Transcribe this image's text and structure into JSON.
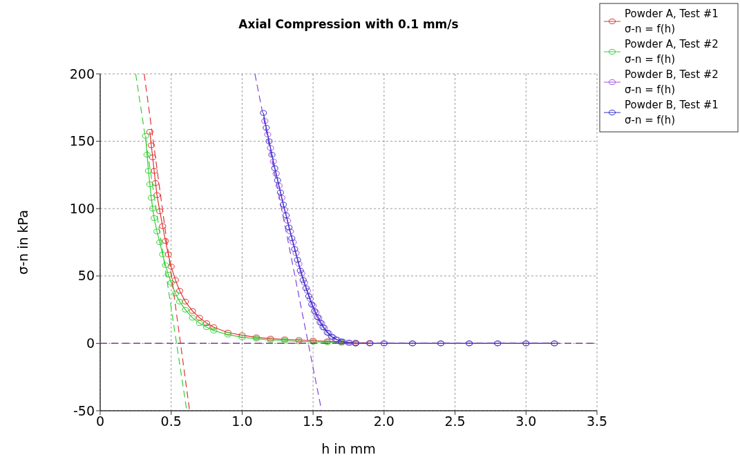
{
  "chart_data": {
    "type": "line",
    "title": "Axial Compression with 0.1 mm/s",
    "xlabel": "h in mm",
    "ylabel": "σ-n in kPa",
    "xlim": [
      0,
      3.5
    ],
    "xticks": [
      0,
      0.5,
      {
        "value": 1,
        "label": "1.0"
      },
      1.5,
      {
        "value": 2,
        "label": "2.0"
      },
      2.5,
      {
        "value": 3,
        "label": "3.0"
      },
      3.5
    ],
    "ylim": [
      -50,
      200
    ],
    "yticks": [
      -50,
      0,
      50,
      100,
      150,
      200
    ],
    "grid": true,
    "legend": "top right",
    "marker": "circle",
    "line_style": "solid",
    "series": [
      {
        "name": "Powder A, Test #1\nσ-n = f(h)",
        "color": "#e03030",
        "x": [
          0.35,
          0.36,
          0.37,
          0.38,
          0.39,
          0.4,
          0.42,
          0.44,
          0.46,
          0.48,
          0.5,
          0.53,
          0.56,
          0.6,
          0.65,
          0.7,
          0.75,
          0.8,
          0.9,
          1.0,
          1.1,
          1.2,
          1.3,
          1.4,
          1.5,
          1.6,
          1.7,
          1.8,
          1.9
        ],
        "values": [
          157,
          147,
          138,
          128,
          119,
          110,
          98,
          87,
          76,
          66,
          57,
          47,
          39,
          31,
          24,
          19,
          15,
          12,
          8,
          6,
          4.5,
          3.5,
          3,
          2.5,
          2,
          1.5,
          1,
          0.5,
          0.3
        ]
      },
      {
        "name": "Powder A, Test #2\nσ-n = f(h)",
        "color": "#30d030",
        "x": [
          0.32,
          0.33,
          0.34,
          0.35,
          0.36,
          0.37,
          0.38,
          0.4,
          0.42,
          0.44,
          0.46,
          0.48,
          0.5,
          0.53,
          0.56,
          0.6,
          0.65,
          0.7,
          0.75,
          0.8,
          0.9,
          1.0,
          1.1,
          1.2,
          1.3,
          1.4,
          1.5,
          1.6,
          1.7,
          1.8
        ],
        "values": [
          154,
          140,
          128,
          118,
          108,
          100,
          93,
          83,
          75,
          66,
          58,
          51,
          45,
          37,
          31,
          25,
          19,
          15,
          12,
          9.5,
          6.5,
          4.5,
          3.5,
          2.5,
          2,
          1.5,
          1.2,
          0.8,
          0.4,
          0
        ]
      },
      {
        "name": "Powder B, Test #2\nσ-n = f(h)",
        "color": "#a050e0",
        "x": [
          1.16,
          1.18,
          1.2,
          1.22,
          1.24,
          1.26,
          1.28,
          1.3,
          1.32,
          1.34,
          1.36,
          1.38,
          1.4,
          1.42,
          1.44,
          1.46,
          1.48,
          1.5,
          1.52,
          1.54,
          1.56,
          1.58,
          1.61,
          1.64,
          1.67,
          1.71,
          1.76,
          1.8,
          1.9,
          2.0,
          2.2,
          2.4,
          2.6,
          2.8,
          3.0,
          3.2
        ],
        "values": [
          165,
          155,
          145,
          135,
          126,
          117,
          108,
          99,
          91,
          83,
          75,
          67,
          59,
          52,
          45,
          39,
          33,
          28,
          23,
          19,
          15,
          11.5,
          7.5,
          4.5,
          2.7,
          1.3,
          0.4,
          0,
          0,
          0,
          0,
          0,
          0,
          0,
          0,
          0
        ]
      },
      {
        "name": "Powder B, Test #1\nσ-n = f(h)",
        "color": "#3030c8",
        "x": [
          1.15,
          1.17,
          1.19,
          1.21,
          1.23,
          1.25,
          1.27,
          1.29,
          1.31,
          1.33,
          1.35,
          1.37,
          1.39,
          1.41,
          1.43,
          1.45,
          1.47,
          1.49,
          1.51,
          1.53,
          1.55,
          1.57,
          1.6,
          1.63,
          1.66,
          1.7,
          1.75,
          1.8,
          1.9,
          2.0,
          2.2,
          2.4,
          2.6,
          2.8,
          3.0,
          3.2
        ],
        "values": [
          171,
          160,
          150,
          140,
          130,
          121,
          112,
          103,
          95,
          86,
          78,
          70,
          62,
          54,
          47,
          41,
          35,
          29,
          24,
          19.5,
          15.5,
          12,
          8,
          5,
          3,
          1.5,
          0.5,
          0,
          0,
          0,
          0,
          0,
          0,
          0,
          0,
          0
        ]
      },
      {
        "color": "#e03030",
        "marker": "none",
        "line_style": "dashed",
        "x": [
          0.31,
          0.63
        ],
        "values": [
          200,
          -50
        ]
      },
      {
        "color": "#30d030",
        "marker": "none",
        "line_style": "dashed",
        "x": [
          0.25,
          0.61
        ],
        "values": [
          200,
          -50
        ]
      },
      {
        "color": "#8040e0",
        "marker": "none",
        "line_style": "dashed",
        "x": [
          1.09,
          1.56
        ],
        "values": [
          200,
          -50
        ]
      },
      {
        "color": "#e03030",
        "marker": "none",
        "line_style": "dashed",
        "x": [
          0,
          3.5
        ],
        "values": [
          0,
          0
        ]
      },
      {
        "color": "#4040d0",
        "marker": "none",
        "line_style": "dashed",
        "x": [
          0,
          3.5
        ],
        "values": [
          0,
          0
        ]
      }
    ]
  }
}
